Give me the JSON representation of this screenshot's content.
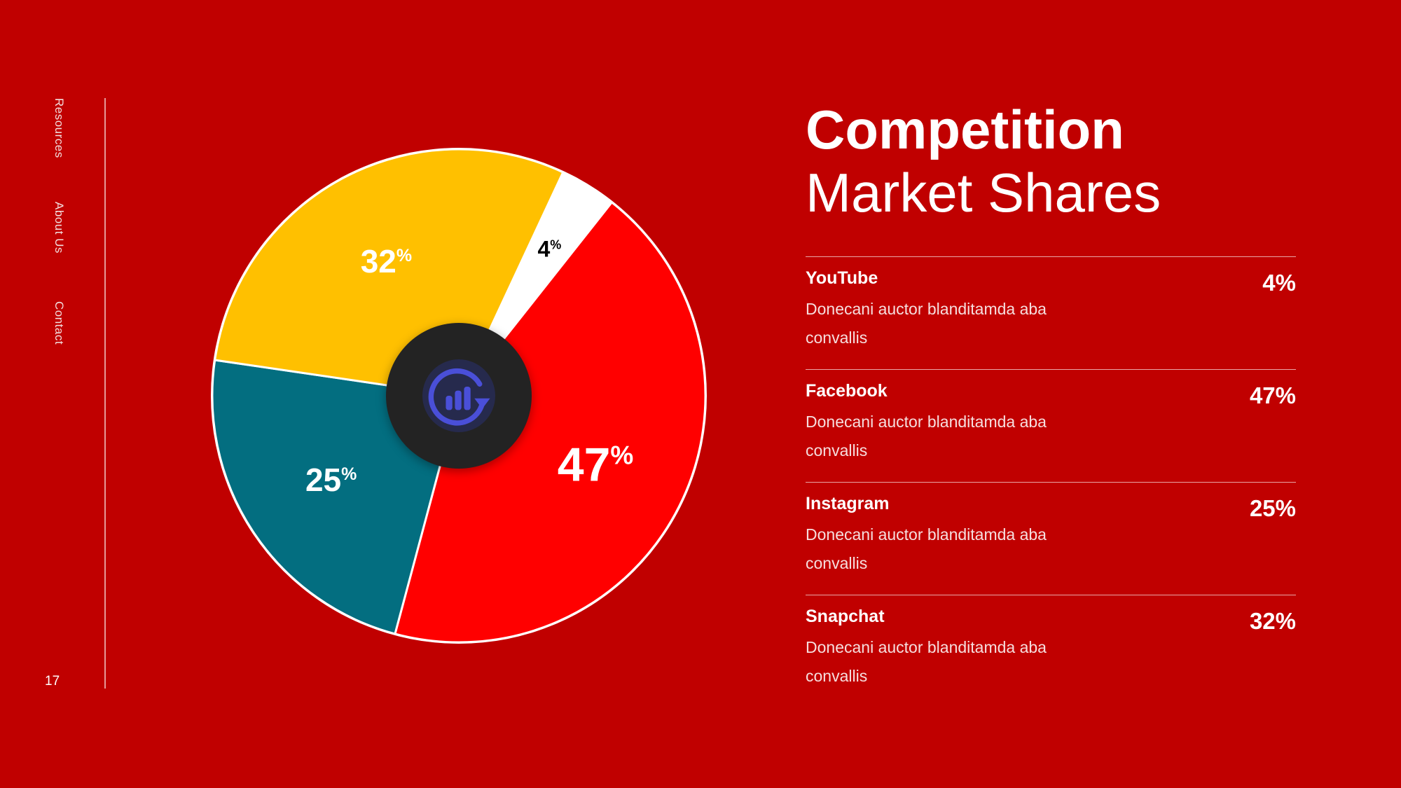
{
  "nav": {
    "items": [
      {
        "label": "Resources"
      },
      {
        "label": "About Us"
      },
      {
        "label": "Contact"
      }
    ],
    "page_number": "17"
  },
  "title": {
    "line1": "Competition",
    "line2": "Market Shares"
  },
  "shares": [
    {
      "name": "YouTube",
      "value": "4%",
      "description": "Donecani auctor blanditamda aba convallis"
    },
    {
      "name": "Facebook",
      "value": "47%",
      "description": "Donecani auctor blanditamda aba convallis"
    },
    {
      "name": "Instagram",
      "value": "25%",
      "description": "Donecani auctor blanditamda aba convallis"
    },
    {
      "name": "Snapchat",
      "value": "32%",
      "description": "Donecani auctor blanditamda aba convallis"
    }
  ],
  "center_icon": "chart-refresh-icon",
  "colors": {
    "background": "#c00000",
    "youtube": "#ffffff",
    "facebook": "#ff0000",
    "instagram": "#036e80",
    "snapchat": "#ffc000",
    "center_disc": "#232323",
    "center_badge": "#262a4d",
    "icon": "#4a4fd8"
  },
  "chart_data": {
    "type": "pie",
    "unit": "%",
    "slices": [
      {
        "label": "YouTube",
        "value": 4,
        "color": "#ffffff",
        "label_color": "#000000"
      },
      {
        "label": "Facebook",
        "value": 47,
        "color": "#ff0000",
        "label_color": "#ffffff"
      },
      {
        "label": "Instagram",
        "value": 25,
        "color": "#036e80",
        "label_color": "#ffffff"
      },
      {
        "label": "Snapchat",
        "value": 32,
        "color": "#ffc000",
        "label_color": "#ffffff"
      }
    ]
  }
}
